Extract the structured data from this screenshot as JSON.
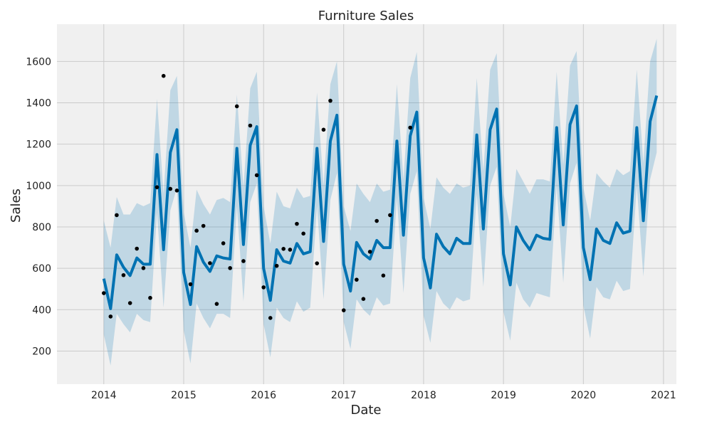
{
  "chart_data": {
    "type": "line",
    "title": "Furniture Sales",
    "xlabel": "Date",
    "ylabel": "Sales",
    "xlim": [
      "2013-06-01",
      "2021-03-01"
    ],
    "ylim": [
      40,
      1780
    ],
    "x_ticks": [
      "2014",
      "2015",
      "2016",
      "2017",
      "2018",
      "2019",
      "2020",
      "2021"
    ],
    "y_ticks": [
      "200",
      "400",
      "600",
      "800",
      "1000",
      "1200",
      "1400",
      "1600"
    ],
    "grid": true,
    "background": "#f0f0f0",
    "colors": {
      "forecast": "#0072b2",
      "band": "#0072b2",
      "observed": "#000000",
      "grid": "#cbcbcb"
    },
    "series": [
      {
        "type": "line",
        "dates": [
          "2014-01",
          "2014-02",
          "2014-03",
          "2014-04",
          "2014-05",
          "2014-06",
          "2014-07",
          "2014-08",
          "2014-09",
          "2014-10",
          "2014-11",
          "2014-12",
          "2015-01",
          "2015-02",
          "2015-03",
          "2015-04",
          "2015-05",
          "2015-06",
          "2015-07",
          "2015-08",
          "2015-09",
          "2015-10",
          "2015-11",
          "2015-12",
          "2016-01",
          "2016-02",
          "2016-03",
          "2016-04",
          "2016-05",
          "2016-06",
          "2016-07",
          "2016-08",
          "2016-09",
          "2016-10",
          "2016-11",
          "2016-12",
          "2017-01",
          "2017-02",
          "2017-03",
          "2017-04",
          "2017-05",
          "2017-06",
          "2017-07",
          "2017-08",
          "2017-09",
          "2017-10",
          "2017-11",
          "2017-12",
          "2018-01",
          "2018-02",
          "2018-03",
          "2018-04",
          "2018-05",
          "2018-06",
          "2018-07",
          "2018-08",
          "2018-09",
          "2018-10",
          "2018-11",
          "2018-12",
          "2019-01",
          "2019-02",
          "2019-03",
          "2019-04",
          "2019-05",
          "2019-06",
          "2019-07",
          "2019-08",
          "2019-09",
          "2019-10",
          "2019-11",
          "2019-12",
          "2020-01",
          "2020-02",
          "2020-03",
          "2020-04",
          "2020-05",
          "2020-06",
          "2020-07",
          "2020-08",
          "2020-09",
          "2020-10",
          "2020-11",
          "2020-12"
        ],
        "yhat": [
          550,
          405,
          665,
          605,
          565,
          650,
          620,
          620,
          1150,
          690,
          1160,
          1270,
          580,
          425,
          705,
          630,
          585,
          660,
          650,
          645,
          1180,
          715,
          1195,
          1285,
          600,
          445,
          690,
          635,
          625,
          720,
          670,
          680,
          1180,
          730,
          1215,
          1340,
          620,
          490,
          725,
          670,
          645,
          735,
          700,
          700,
          1215,
          760,
          1240,
          1355,
          650,
          505,
          765,
          705,
          670,
          745,
          720,
          720,
          1245,
          790,
          1270,
          1370,
          670,
          520,
          800,
          735,
          690,
          760,
          745,
          740,
          1280,
          810,
          1295,
          1385,
          700,
          545,
          790,
          735,
          720,
          820,
          770,
          780,
          1280,
          830,
          1310,
          1435
        ],
        "yhat_upper": [
          830,
          700,
          945,
          860,
          860,
          915,
          900,
          915,
          1420,
          960,
          1460,
          1530,
          870,
          700,
          980,
          910,
          860,
          930,
          940,
          920,
          1440,
          990,
          1470,
          1550,
          900,
          720,
          970,
          900,
          890,
          990,
          940,
          950,
          1450,
          1000,
          1490,
          1600,
          900,
          780,
          1010,
          960,
          920,
          1010,
          970,
          980,
          1490,
          1030,
          1520,
          1645,
          940,
          790,
          1040,
          990,
          960,
          1010,
          990,
          1000,
          1520,
          1070,
          1560,
          1640,
          960,
          800,
          1080,
          1020,
          960,
          1030,
          1030,
          1020,
          1550,
          1100,
          1580,
          1650,
          990,
          830,
          1060,
          1020,
          990,
          1080,
          1050,
          1070,
          1560,
          1110,
          1600,
          1710
        ],
        "yhat_lower": [
          280,
          130,
          380,
          330,
          290,
          380,
          350,
          340,
          870,
          410,
          880,
          990,
          300,
          140,
          430,
          360,
          310,
          380,
          380,
          360,
          900,
          440,
          920,
          1010,
          330,
          170,
          410,
          360,
          340,
          440,
          390,
          410,
          900,
          450,
          930,
          1060,
          340,
          210,
          450,
          400,
          370,
          460,
          420,
          430,
          940,
          480,
          960,
          1070,
          370,
          240,
          490,
          430,
          400,
          460,
          440,
          450,
          960,
          510,
          1000,
          1090,
          390,
          250,
          530,
          450,
          410,
          480,
          470,
          460,
          1000,
          530,
          1010,
          1110,
          420,
          260,
          510,
          460,
          450,
          540,
          490,
          500,
          1000,
          560,
          1030,
          1160
        ]
      },
      {
        "type": "scatter",
        "points": [
          [
            "2014-01",
            480
          ],
          [
            "2014-02",
            367
          ],
          [
            "2014-03",
            857
          ],
          [
            "2014-04",
            567
          ],
          [
            "2014-05",
            432
          ],
          [
            "2014-06",
            695
          ],
          [
            "2014-07",
            601
          ],
          [
            "2014-08",
            457
          ],
          [
            "2014-09",
            992
          ],
          [
            "2014-10",
            1530
          ],
          [
            "2014-11",
            984
          ],
          [
            "2014-12",
            976
          ],
          [
            "2015-02",
            523
          ],
          [
            "2015-03",
            782
          ],
          [
            "2015-04",
            805
          ],
          [
            "2015-05",
            625
          ],
          [
            "2015-06",
            428
          ],
          [
            "2015-07",
            721
          ],
          [
            "2015-08",
            601
          ],
          [
            "2015-09",
            1383
          ],
          [
            "2015-10",
            635
          ],
          [
            "2015-11",
            1290
          ],
          [
            "2015-12",
            1050
          ],
          [
            "2016-01",
            508
          ],
          [
            "2016-02",
            360
          ],
          [
            "2016-03",
            612
          ],
          [
            "2016-04",
            694
          ],
          [
            "2016-05",
            690
          ],
          [
            "2016-06",
            815
          ],
          [
            "2016-07",
            768
          ],
          [
            "2016-09",
            624
          ],
          [
            "2016-10",
            1270
          ],
          [
            "2016-11",
            1410
          ],
          [
            "2017-01",
            397
          ],
          [
            "2017-03",
            545
          ],
          [
            "2017-04",
            452
          ],
          [
            "2017-05",
            680
          ],
          [
            "2017-06",
            829
          ],
          [
            "2017-07",
            565
          ],
          [
            "2017-08",
            857
          ],
          [
            "2017-11",
            1280
          ]
        ]
      }
    ]
  }
}
